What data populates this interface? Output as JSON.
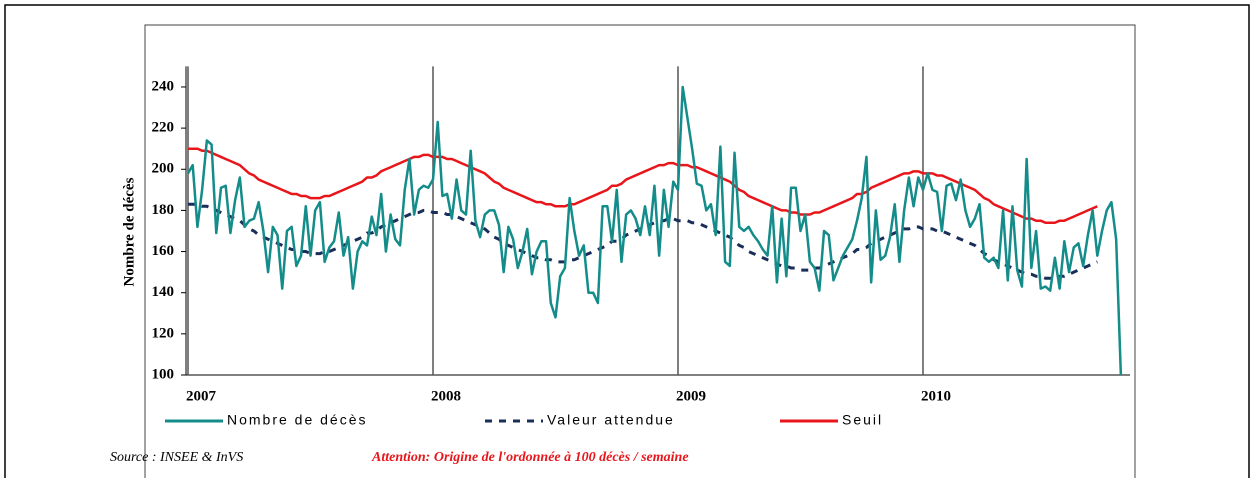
{
  "chart_data": {
    "type": "line",
    "ylabel": "Nombre de décès",
    "source": "Source : INSEE & InVS",
    "annotation": "Attention: Origine de l'ordonnée à 100 décès / semaine",
    "ylim": [
      100,
      250
    ],
    "yticks": [
      100,
      120,
      140,
      160,
      180,
      200,
      220,
      240
    ],
    "xlim": [
      0,
      201
    ],
    "xticks": [
      {
        "value": 0,
        "label": "2007"
      },
      {
        "value": 52,
        "label": "2008"
      },
      {
        "value": 104,
        "label": "2009"
      },
      {
        "value": 156,
        "label": "2010"
      }
    ],
    "grid": "x",
    "x": [
      0,
      1,
      2,
      3,
      4,
      5,
      6,
      7,
      8,
      9,
      10,
      11,
      12,
      13,
      14,
      15,
      16,
      17,
      18,
      19,
      20,
      21,
      22,
      23,
      24,
      25,
      26,
      27,
      28,
      29,
      30,
      31,
      32,
      33,
      34,
      35,
      36,
      37,
      38,
      39,
      40,
      41,
      42,
      43,
      44,
      45,
      46,
      47,
      48,
      49,
      50,
      51,
      52,
      53,
      54,
      55,
      56,
      57,
      58,
      59,
      60,
      61,
      62,
      63,
      64,
      65,
      66,
      67,
      68,
      69,
      70,
      71,
      72,
      73,
      74,
      75,
      76,
      77,
      78,
      79,
      80,
      81,
      82,
      83,
      84,
      85,
      86,
      87,
      88,
      89,
      90,
      91,
      92,
      93,
      94,
      95,
      96,
      97,
      98,
      99,
      100,
      101,
      102,
      103,
      104,
      105,
      106,
      107,
      108,
      109,
      110,
      111,
      112,
      113,
      114,
      115,
      116,
      117,
      118,
      119,
      120,
      121,
      122,
      123,
      124,
      125,
      126,
      127,
      128,
      129,
      130,
      131,
      132,
      133,
      134,
      135,
      136,
      137,
      138,
      139,
      140,
      141,
      142,
      143,
      144,
      145,
      146,
      147,
      148,
      149,
      150,
      151,
      152,
      153,
      154,
      155,
      156,
      157,
      158,
      159,
      160,
      161,
      162,
      163,
      164,
      165,
      166,
      167,
      168,
      169,
      170,
      171,
      172,
      173,
      174,
      175,
      176,
      177,
      178,
      179,
      180,
      181,
      182,
      183,
      184,
      185,
      186,
      187,
      188,
      189,
      190,
      191,
      192,
      193,
      194,
      195,
      196,
      197,
      198
    ],
    "series": [
      {
        "name": "Nombre de décès",
        "color": "#138c8a",
        "dash": false,
        "values": [
          198,
          202,
          172,
          190,
          214,
          212,
          169,
          191,
          192,
          169,
          185,
          196,
          172,
          175,
          176,
          184,
          170,
          150,
          172,
          168,
          142,
          170,
          172,
          153,
          158,
          182,
          158,
          180,
          184,
          155,
          162,
          165,
          179,
          158,
          167,
          142,
          160,
          165,
          163,
          177,
          168,
          188,
          160,
          178,
          166,
          163,
          190,
          205,
          178,
          190,
          192,
          191,
          195,
          223,
          187,
          188,
          176,
          195,
          180,
          178,
          209,
          175,
          167,
          178,
          180,
          180,
          173,
          150,
          172,
          166,
          152,
          160,
          171,
          149,
          160,
          165,
          165,
          135,
          128,
          148,
          152,
          186,
          170,
          158,
          163,
          140,
          140,
          135,
          182,
          182,
          165,
          190,
          155,
          178,
          180,
          176,
          168,
          182,
          168,
          192,
          158,
          190,
          172,
          194,
          190,
          240,
          225,
          210,
          193,
          192,
          180,
          183,
          168,
          211,
          155,
          153,
          208,
          172,
          170,
          172,
          168,
          165,
          161,
          158,
          182,
          145,
          176,
          148,
          191,
          191,
          170,
          178,
          155,
          152,
          141,
          170,
          168,
          146,
          152,
          158,
          162,
          166,
          175,
          186,
          206,
          145,
          180,
          156,
          158,
          167,
          183,
          155,
          180,
          196,
          182,
          196,
          190,
          198,
          190,
          189,
          170,
          192,
          193,
          185,
          195,
          180,
          172,
          176,
          183,
          157,
          155,
          157,
          152,
          180,
          146,
          182,
          151,
          143,
          205,
          152,
          170,
          142,
          143,
          141,
          157,
          142,
          165,
          150,
          162,
          164,
          153,
          168,
          180,
          158,
          170,
          180,
          184,
          166,
          100
        ]
      },
      {
        "name": "Valeur attendue",
        "color": "#1a2e5a",
        "dash": true,
        "values": [
          183,
          183,
          183,
          182,
          182,
          181,
          180,
          179,
          178,
          177,
          176,
          175,
          173,
          171,
          170,
          168,
          167,
          166,
          165,
          164,
          163,
          162,
          161,
          161,
          160,
          160,
          159,
          159,
          159,
          160,
          160,
          161,
          162,
          163,
          164,
          165,
          166,
          167,
          169,
          169,
          170,
          172,
          173,
          174,
          175,
          176,
          177,
          178,
          179,
          179,
          180,
          180,
          179,
          179,
          179,
          178,
          178,
          177,
          176,
          175,
          174,
          173,
          172,
          171,
          169,
          167,
          166,
          164,
          163,
          162,
          161,
          160,
          159,
          158,
          157,
          157,
          156,
          156,
          155,
          155,
          155,
          156,
          156,
          157,
          158,
          159,
          160,
          161,
          162,
          163,
          165,
          165,
          166,
          168,
          169,
          170,
          171,
          172,
          173,
          174,
          175,
          175,
          176,
          176,
          175,
          175,
          175,
          174,
          174,
          173,
          172,
          171,
          170,
          169,
          168,
          167,
          165,
          163,
          162,
          160,
          159,
          158,
          157,
          156,
          155,
          154,
          153,
          153,
          152,
          152,
          151,
          151,
          151,
          152,
          152,
          153,
          154,
          155,
          156,
          157,
          158,
          159,
          161,
          161,
          162,
          164,
          165,
          166,
          167,
          168,
          169,
          170,
          171,
          171,
          172,
          172,
          171,
          171,
          171,
          170,
          170,
          169,
          168,
          167,
          166,
          165,
          164,
          163,
          161,
          159,
          158,
          156,
          155,
          154,
          153,
          152,
          151,
          150,
          149,
          149,
          148,
          148,
          147,
          147,
          147,
          148,
          148,
          149,
          150,
          151,
          152,
          153,
          154,
          155,
          null,
          null,
          null,
          null,
          null
        ]
      },
      {
        "name": "Seuil",
        "color": "#e8161b",
        "dash": false,
        "values": [
          210,
          210,
          210,
          209,
          209,
          208,
          207,
          206,
          205,
          204,
          203,
          202,
          200,
          198,
          197,
          195,
          194,
          193,
          192,
          191,
          190,
          189,
          188,
          188,
          187,
          187,
          186,
          186,
          186,
          187,
          187,
          188,
          189,
          190,
          191,
          192,
          193,
          194,
          196,
          196,
          197,
          199,
          200,
          201,
          202,
          203,
          204,
          205,
          206,
          206,
          207,
          207,
          206,
          206,
          206,
          205,
          205,
          204,
          203,
          202,
          201,
          200,
          199,
          198,
          196,
          194,
          193,
          191,
          190,
          189,
          188,
          187,
          186,
          185,
          184,
          184,
          183,
          183,
          182,
          182,
          182,
          183,
          183,
          184,
          185,
          186,
          187,
          188,
          189,
          190,
          192,
          192,
          193,
          195,
          196,
          197,
          198,
          199,
          200,
          201,
          202,
          202,
          203,
          203,
          202,
          202,
          202,
          201,
          201,
          200,
          199,
          198,
          197,
          196,
          195,
          194,
          192,
          190,
          189,
          187,
          186,
          185,
          184,
          183,
          182,
          181,
          180,
          180,
          179,
          179,
          178,
          178,
          178,
          179,
          179,
          180,
          181,
          182,
          183,
          184,
          185,
          186,
          188,
          188,
          189,
          191,
          192,
          193,
          194,
          195,
          196,
          197,
          198,
          198,
          199,
          199,
          198,
          198,
          198,
          197,
          197,
          196,
          195,
          194,
          193,
          192,
          191,
          190,
          188,
          186,
          185,
          183,
          182,
          181,
          180,
          179,
          178,
          177,
          176,
          176,
          175,
          175,
          174,
          174,
          174,
          175,
          175,
          176,
          177,
          178,
          179,
          180,
          181,
          182,
          null,
          null,
          null,
          null,
          null
        ]
      }
    ]
  }
}
